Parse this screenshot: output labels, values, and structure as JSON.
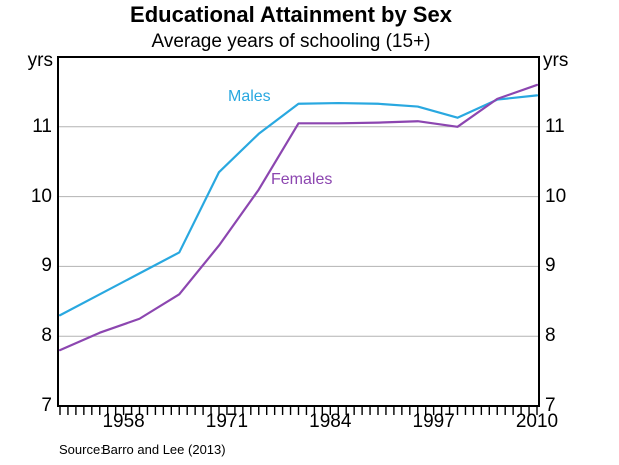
{
  "chart_data": {
    "type": "line",
    "title": "Educational Attainment by Sex",
    "subtitle": "Average years of schooling (15+)",
    "unit_left": "yrs",
    "unit_right": "yrs",
    "x": [
      1950,
      1955,
      1960,
      1965,
      1970,
      1975,
      1980,
      1985,
      1990,
      1995,
      2000,
      2005,
      2010
    ],
    "series": [
      {
        "name": "Males",
        "color": "#29a8e0",
        "values": [
          8.3,
          8.6,
          8.9,
          9.2,
          10.35,
          10.9,
          11.33,
          11.34,
          11.33,
          11.29,
          11.13,
          11.39,
          11.45
        ]
      },
      {
        "name": "Females",
        "color": "#8c46b0",
        "values": [
          7.8,
          8.05,
          8.25,
          8.6,
          9.3,
          10.1,
          11.05,
          11.05,
          11.06,
          11.08,
          11.0,
          11.4,
          11.6
        ]
      }
    ],
    "ylim": [
      7,
      12
    ],
    "y_ticks": [
      7,
      8,
      9,
      10,
      11
    ],
    "x_tick_labels": [
      1958,
      1971,
      1984,
      1997,
      2010
    ],
    "x_minor_tick_step": 1,
    "grid": "horizontal",
    "legend_position": "inline-labels",
    "source_label": "Source:",
    "source_value": "Barro and Lee (2013)"
  },
  "colors": {
    "axis": "#000000",
    "gridline": "#b3b3b3",
    "background": "#ffffff",
    "text": "#000000"
  }
}
